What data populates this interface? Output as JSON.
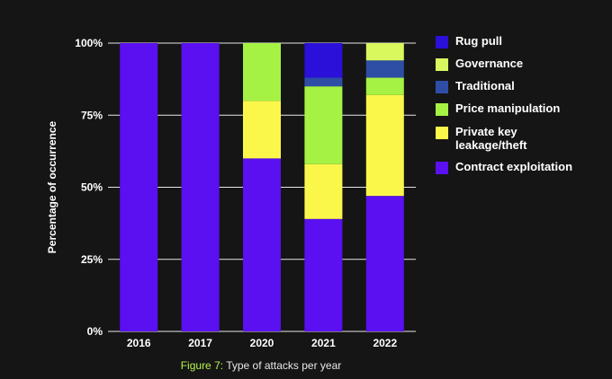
{
  "chart_data": {
    "type": "bar",
    "stacked": true,
    "categories": [
      "2016",
      "2017",
      "2020",
      "2021",
      "2022"
    ],
    "ylabel": "Percentage of occurrence",
    "xlabel": "",
    "ylim": [
      0,
      100
    ],
    "yticks": [
      "0%",
      "25%",
      "50%",
      "75%",
      "100%"
    ],
    "grid": true,
    "legend_position": "right",
    "series": [
      {
        "name": "Contract exploitation",
        "color": "#5a10f0",
        "values": [
          100,
          100,
          60,
          39,
          47
        ]
      },
      {
        "name": "Private key\nleakage/theft",
        "color": "#fbf74a",
        "values": [
          0,
          0,
          20,
          19,
          35
        ]
      },
      {
        "name": "Price manipulation",
        "color": "#a5f244",
        "values": [
          0,
          0,
          20,
          27,
          6
        ]
      },
      {
        "name": "Traditional",
        "color": "#2e4ea6",
        "values": [
          0,
          0,
          0,
          3,
          6
        ]
      },
      {
        "name": "Governance",
        "color": "#d8f85e",
        "values": [
          0,
          0,
          0,
          0,
          6
        ]
      },
      {
        "name": "Rug pull",
        "color": "#2a10d8",
        "values": [
          0,
          0,
          0,
          12,
          0
        ]
      }
    ],
    "legend_order": [
      "Rug pull",
      "Governance",
      "Traditional",
      "Price manipulation",
      "Private key\nleakage/theft",
      "Contract exploitation"
    ]
  },
  "caption": {
    "figure_label": "Figure 7:",
    "text": " Type of attacks per year"
  }
}
